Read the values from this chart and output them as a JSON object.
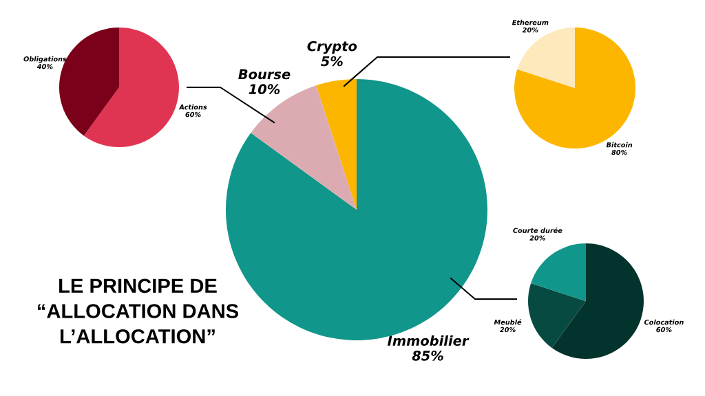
{
  "chart_data": [
    {
      "type": "pie",
      "title": "LE PRINCIPE DE\n“ALLOCATION DANS\nL’ALLOCATION”",
      "categories": [
        "Immobilier",
        "Bourse",
        "Crypto"
      ],
      "values": [
        85,
        10,
        5
      ],
      "colors": [
        "#10968a",
        "#dcabb2",
        "#fdb600"
      ],
      "value_labels": [
        "85%",
        "10%",
        "5%"
      ]
    },
    {
      "type": "pie",
      "categories": [
        "Actions",
        "Obligations"
      ],
      "values": [
        60,
        40
      ],
      "colors": [
        "#e03552",
        "#7b0019"
      ],
      "value_labels": [
        "60%",
        "40%"
      ]
    },
    {
      "type": "pie",
      "categories": [
        "Bitcoin",
        "Ethereum"
      ],
      "values": [
        80,
        20
      ],
      "colors": [
        "#fdb600",
        "#fde9bc"
      ],
      "value_labels": [
        "80%",
        "20%"
      ]
    },
    {
      "type": "pie",
      "categories": [
        "Colocation",
        "Meublé",
        "Courte durée"
      ],
      "values": [
        60,
        20,
        20
      ],
      "colors": [
        "#02332c",
        "#074a42",
        "#10968a"
      ],
      "value_labels": [
        "60%",
        "20%",
        "20%"
      ]
    }
  ]
}
